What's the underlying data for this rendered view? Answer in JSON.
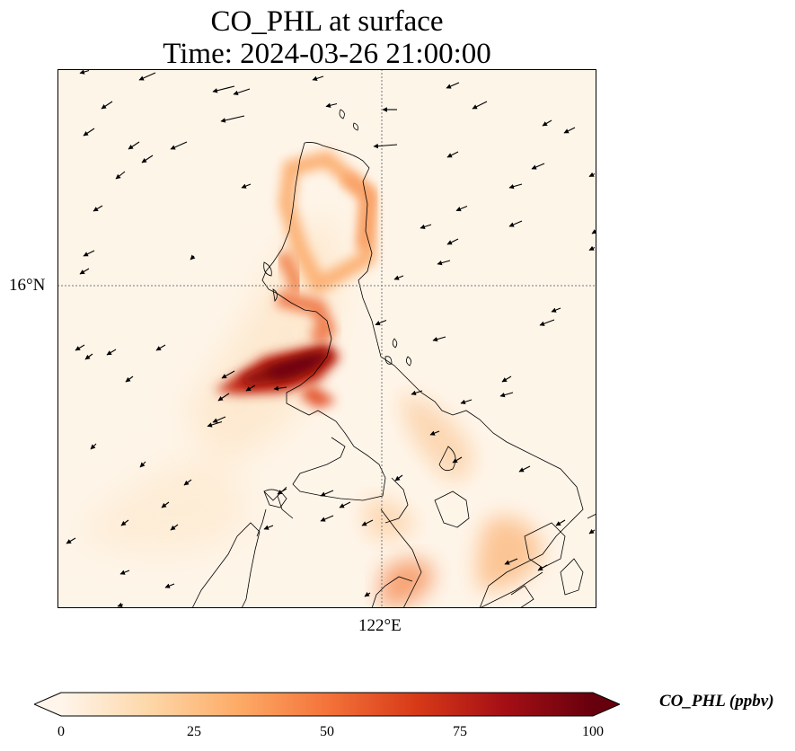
{
  "title": {
    "line1": "CO_PHL at surface",
    "line2": "Time: 2024-03-26 21:00:00"
  },
  "map": {
    "lat_label": "16°N",
    "lon_label": "122°E",
    "background_color": "#fef5e9",
    "coastline_color": "#000000",
    "gridline_style": "dotted"
  },
  "colorbar": {
    "label": "CO_PHL (ppbv)",
    "ticks": [
      "0",
      "25",
      "50",
      "75",
      "100"
    ],
    "min": 0,
    "max": 100,
    "colors": [
      "#fff5eb",
      "#fdd7a8",
      "#fdab67",
      "#f4733a",
      "#d83a18",
      "#a50f15",
      "#67000d"
    ]
  }
}
